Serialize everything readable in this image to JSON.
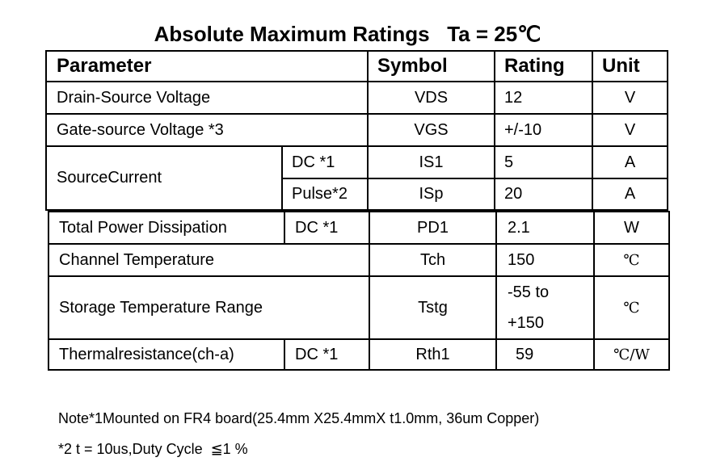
{
  "title": "Absolute Maximum Ratings   Ta = 25℃",
  "table": {
    "header": [
      "Parameter",
      "Symbol",
      "Rating",
      "Unit"
    ],
    "rows": [
      {
        "parameter": "Drain-Source Voltage",
        "symbol": "VDS",
        "rating": "12",
        "unit": "V"
      },
      {
        "parameter": "Gate-source Voltage *3",
        "symbol": "VGS",
        "rating": "+/-10",
        "unit": "V"
      },
      {
        "parameter": "SourceCurrent",
        "conditions": [
          {
            "condition": "DC *1",
            "symbol": "IS1",
            "rating": "5",
            "unit": "A"
          },
          {
            "condition": "Pulse*2",
            "symbol": "ISp",
            "rating": "20",
            "unit": "A"
          }
        ]
      }
    ]
  },
  "table2": {
    "rows": [
      {
        "parameter": "Total Power Dissipation",
        "condition": "DC *1",
        "symbol": "PD1",
        "rating": "2.1",
        "unit": "W"
      },
      {
        "parameter": "Channel Temperature",
        "symbol": "Tch",
        "rating": "150",
        "unit": "℃"
      },
      {
        "parameter": "Storage Temperature Range",
        "symbol": "Tstg",
        "rating": [
          "-55 to",
          "+150"
        ],
        "unit": "℃"
      },
      {
        "parameter": "Thermalresistance(ch-a)",
        "condition": "DC *1",
        "symbol": "Rth1",
        "rating": "59",
        "unit": "℃/W"
      }
    ]
  },
  "notes": [
    "Note*1Mounted on FR4 board(25.4mm X25.4mmX t1.0mm, 36um Copper)",
    "*2 t = 10us,Duty Cycle  ≦1 %"
  ]
}
